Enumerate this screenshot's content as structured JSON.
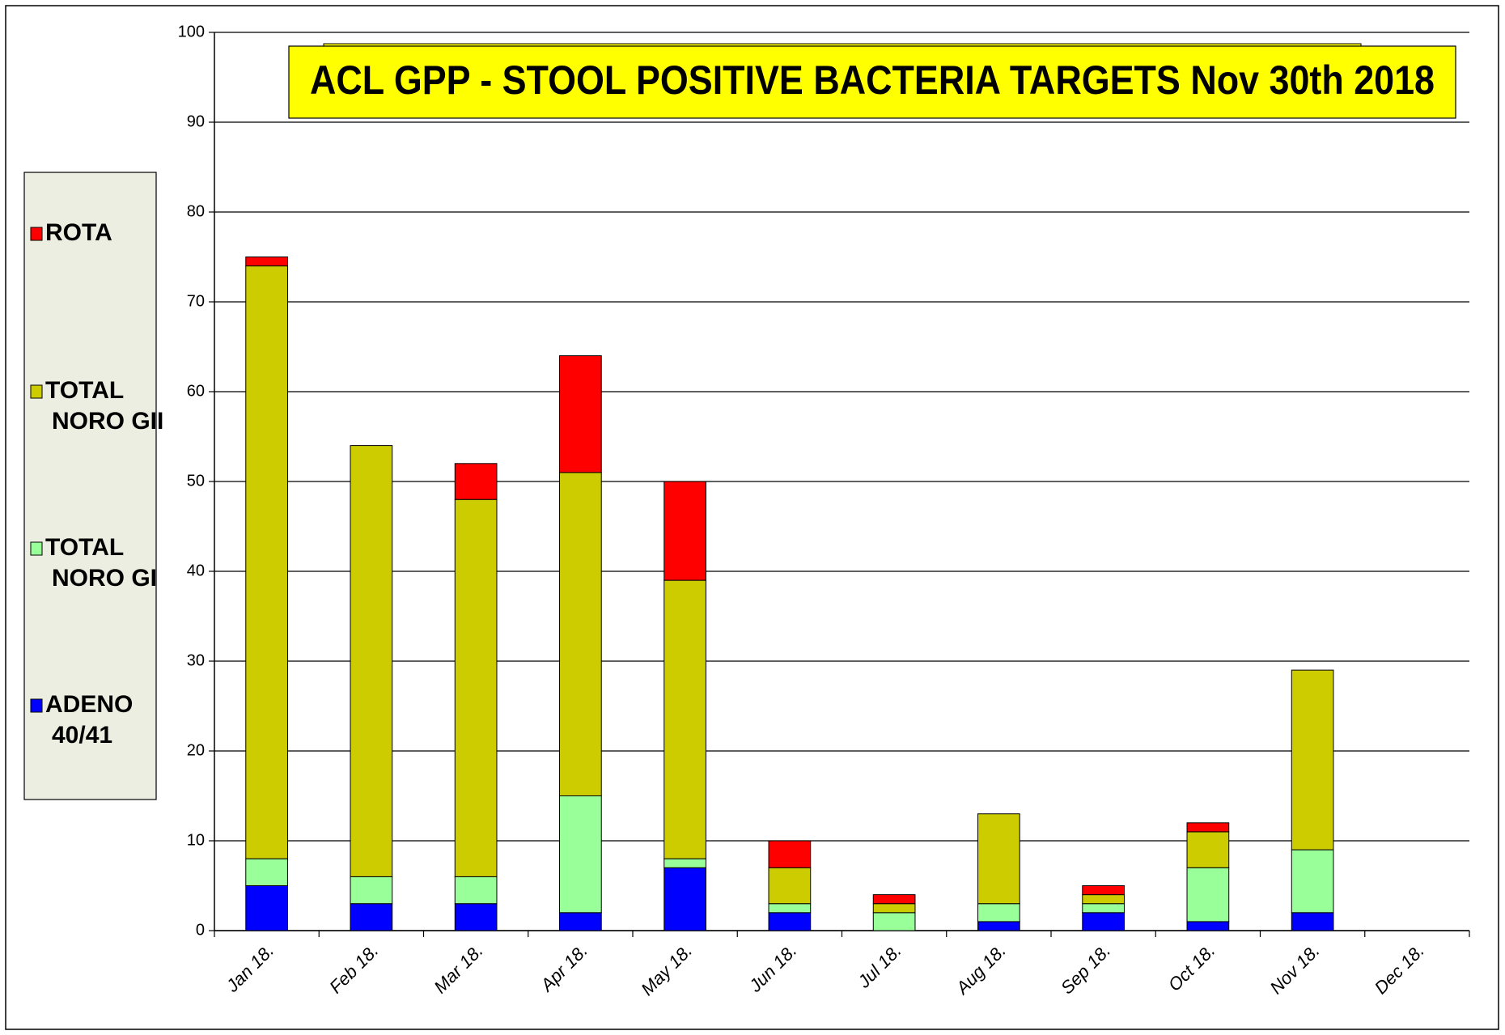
{
  "chart_data": {
    "type": "stacked_bar",
    "title": "ACL GPP - STOOL POSITIVE BACTERIA TARGETS Nov 30th  2018",
    "categories": [
      "Jan 18.",
      "Feb 18.",
      "Mar 18.",
      "Apr 18.",
      "May 18.",
      "Jun 18.",
      "Jul 18.",
      "Aug 18.",
      "Sep 18.",
      "Oct 18.",
      "Nov 18.",
      "Dec 18."
    ],
    "series": [
      {
        "name": "ADENO 40/41",
        "color": "#0000ff",
        "values": [
          5,
          3,
          3,
          2,
          7,
          2,
          0,
          1,
          2,
          1,
          2,
          null
        ]
      },
      {
        "name": "TOTAL NORO GI",
        "color": "#99ff99",
        "values": [
          3,
          3,
          3,
          13,
          1,
          1,
          2,
          2,
          1,
          6,
          7,
          null
        ]
      },
      {
        "name": "TOTAL NORO GII",
        "color": "#cccc00",
        "values": [
          66,
          48,
          42,
          36,
          31,
          4,
          1,
          10,
          1,
          4,
          20,
          null
        ]
      },
      {
        "name": "ROTA",
        "color": "#ff0000",
        "values": [
          1,
          0,
          4,
          13,
          11,
          3,
          1,
          0,
          1,
          1,
          0,
          null
        ]
      }
    ],
    "ylim": [
      0,
      100
    ],
    "yticks": [
      0,
      10,
      20,
      30,
      40,
      50,
      60,
      70,
      80,
      90,
      100
    ],
    "grid": true,
    "legend": "left"
  }
}
